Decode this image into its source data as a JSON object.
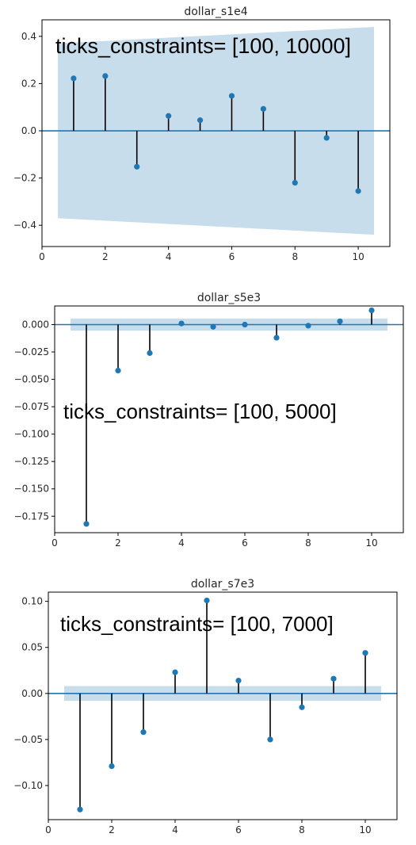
{
  "chart_data": [
    {
      "type": "stem",
      "title": "dollar_s1e4",
      "annotation": "ticks_constraints= [100, 10000]",
      "x": [
        1,
        2,
        3,
        4,
        5,
        6,
        7,
        8,
        9,
        10
      ],
      "values": [
        0.222,
        0.232,
        -0.152,
        0.063,
        0.045,
        0.148,
        0.093,
        -0.22,
        -0.03,
        -0.255
      ],
      "confidence_band": {
        "x": [
          0.5,
          10.5
        ],
        "upper_start": 0.37,
        "upper_end": 0.44,
        "lower_start": -0.37,
        "lower_end": -0.44
      },
      "xlim": [
        0,
        11
      ],
      "ylim": [
        -0.49,
        0.47
      ],
      "xticks": [
        0,
        2,
        4,
        6,
        8,
        10
      ],
      "yticks": [
        0.4,
        0.2,
        0.0,
        -0.2,
        -0.4
      ],
      "ytick_labels": [
        "0.4",
        "0.2",
        "0.0",
        "−0.2",
        "−0.4"
      ]
    },
    {
      "type": "stem",
      "title": "dollar_s5e3",
      "annotation": "ticks_constraints= [100, 5000]",
      "x": [
        1,
        2,
        3,
        4,
        5,
        6,
        7,
        8,
        9,
        10
      ],
      "values": [
        -0.182,
        -0.042,
        -0.026,
        0.001,
        -0.002,
        0.0,
        -0.012,
        -0.001,
        0.003,
        0.013
      ],
      "confidence_band": {
        "x": [
          0.5,
          10.5
        ],
        "upper_start": 0.0055,
        "upper_end": 0.0055,
        "lower_start": -0.0055,
        "lower_end": -0.0055
      },
      "xlim": [
        0,
        11
      ],
      "ylim": [
        -0.19,
        0.017
      ],
      "xticks": [
        0,
        2,
        4,
        6,
        8,
        10
      ],
      "yticks": [
        0.0,
        -0.025,
        -0.05,
        -0.075,
        -0.1,
        -0.125,
        -0.15,
        -0.175
      ],
      "ytick_labels": [
        "0.000",
        "−0.025",
        "−0.050",
        "−0.075",
        "−0.100",
        "−0.125",
        "−0.150",
        "−0.175"
      ]
    },
    {
      "type": "stem",
      "title": "dollar_s7e3",
      "annotation": "ticks_constraints= [100, 7000]",
      "x": [
        1,
        2,
        3,
        4,
        5,
        6,
        7,
        8,
        9,
        10
      ],
      "values": [
        -0.126,
        -0.079,
        -0.042,
        0.023,
        0.101,
        0.014,
        -0.05,
        -0.015,
        0.016,
        0.044
      ],
      "confidence_band": {
        "x": [
          0.5,
          10.5
        ],
        "upper_start": 0.008,
        "upper_end": 0.008,
        "lower_start": -0.008,
        "lower_end": -0.008
      },
      "xlim": [
        0,
        11
      ],
      "ylim": [
        -0.137,
        0.11
      ],
      "xticks": [
        0,
        2,
        4,
        6,
        8,
        10
      ],
      "yticks": [
        0.1,
        0.05,
        0.0,
        -0.05,
        -0.1
      ],
      "ytick_labels": [
        "0.10",
        "0.05",
        "0.00",
        "−0.05",
        "−0.10"
      ]
    }
  ],
  "colors": {
    "marker": "#1f77b4",
    "zero_line": "#1f77b4",
    "band": "#1f77b4",
    "stem": "#000000",
    "axes": "#000000"
  }
}
